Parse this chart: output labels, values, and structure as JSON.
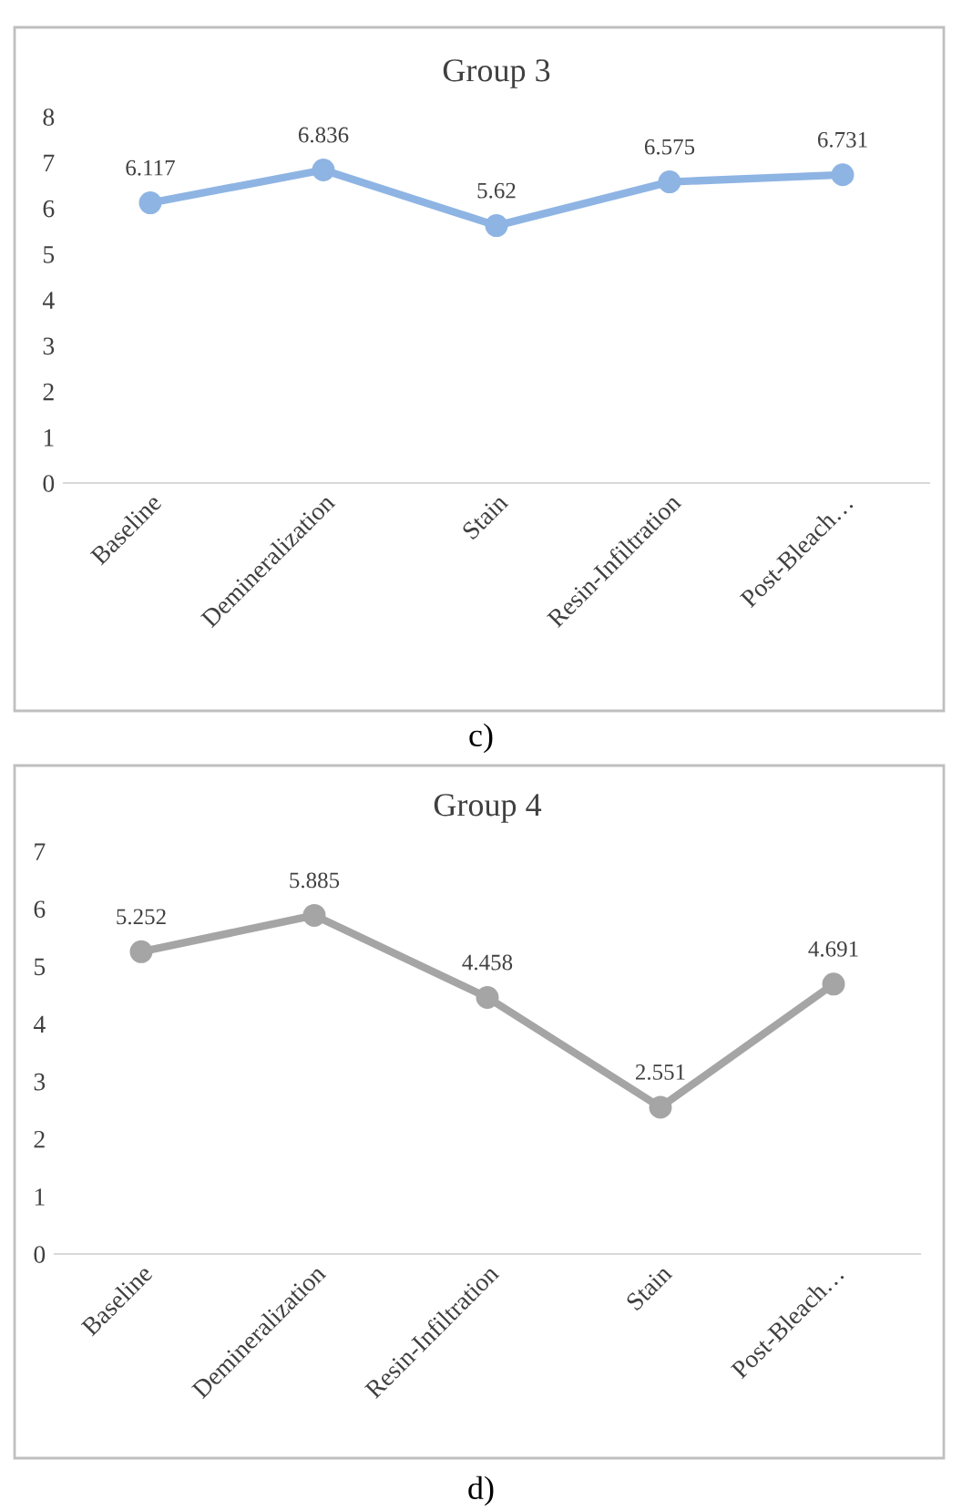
{
  "chart_data": [
    {
      "type": "line",
      "title": "Group 3",
      "categories": [
        "Baseline",
        "Demineralization",
        "Stain",
        "Resin-Infiltration",
        "Post-Bleach…"
      ],
      "series": [
        {
          "color": "#8eb4e3",
          "values": [
            6.117,
            6.836,
            5.62,
            6.575,
            6.731
          ]
        }
      ],
      "ylim": [
        0,
        8
      ],
      "yticks": [
        0,
        1,
        2,
        3,
        4,
        5,
        6,
        7,
        8
      ],
      "grid": false,
      "legend": false,
      "marker": "circle",
      "line_style": "solid",
      "data_labels": true,
      "annotations": [
        "c)"
      ]
    },
    {
      "type": "line",
      "title": "Group 4",
      "categories": [
        "Baseline",
        "Demineralization",
        "Resin-Infiltration",
        "Stain",
        "Post-Bleach…"
      ],
      "series": [
        {
          "color": "#a5a5a5",
          "values": [
            5.252,
            5.885,
            4.458,
            2.551,
            4.691
          ]
        }
      ],
      "ylim": [
        0,
        7
      ],
      "yticks": [
        0,
        1,
        2,
        3,
        4,
        5,
        6,
        7
      ],
      "grid": false,
      "legend": false,
      "marker": "circle",
      "line_style": "solid",
      "data_labels": true,
      "annotations": [
        "d)"
      ]
    }
  ]
}
